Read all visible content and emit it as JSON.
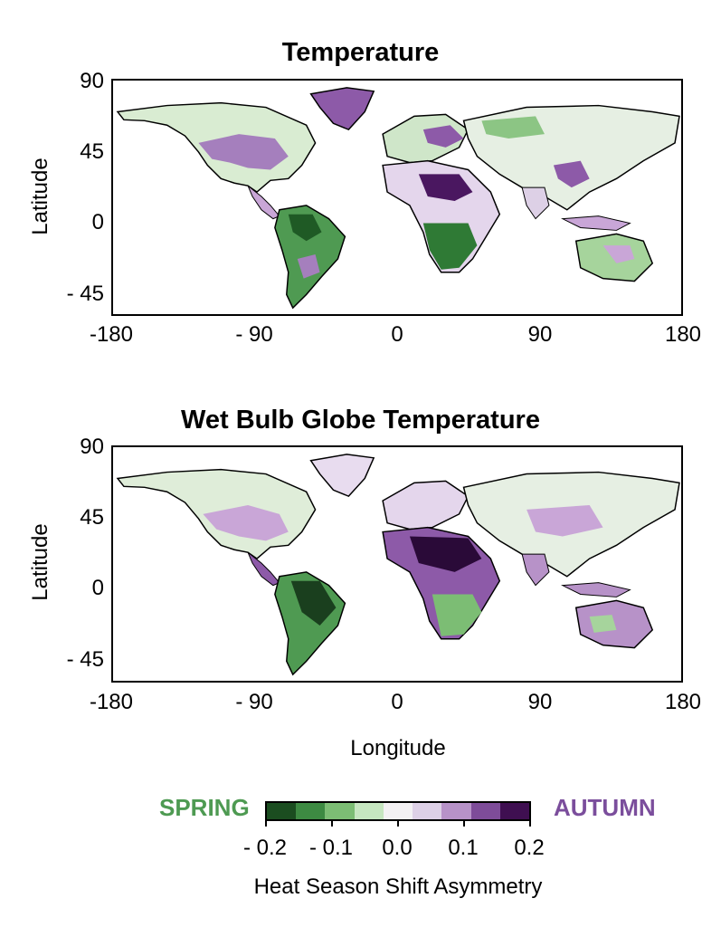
{
  "panels": [
    {
      "title": "Temperature",
      "y_label": "Latitude"
    },
    {
      "title": "Wet Bulb Globe Temperature",
      "y_label": "Latitude"
    }
  ],
  "axes": {
    "x_ticks": [
      "-180",
      "- 90",
      "0",
      "90",
      "180"
    ],
    "y_ticks": [
      "90",
      "45",
      "0",
      "- 45"
    ],
    "x_label": "Longitude"
  },
  "colorbar": {
    "left_label": "SPRING",
    "right_label": "AUTUMN",
    "left_color": "#4e9a52",
    "right_color": "#7b4e9c",
    "colors": [
      "#1b4d20",
      "#3d8a42",
      "#7cbd74",
      "#c6e6c0",
      "#f3f1f3",
      "#ddd0e6",
      "#b792c8",
      "#7e4c99",
      "#3f0f51"
    ],
    "ticks": [
      "- 0.2",
      "- 0.1",
      "0.0",
      "0.1",
      "0.2"
    ],
    "label": "Heat Season Shift Asymmetry"
  }
}
